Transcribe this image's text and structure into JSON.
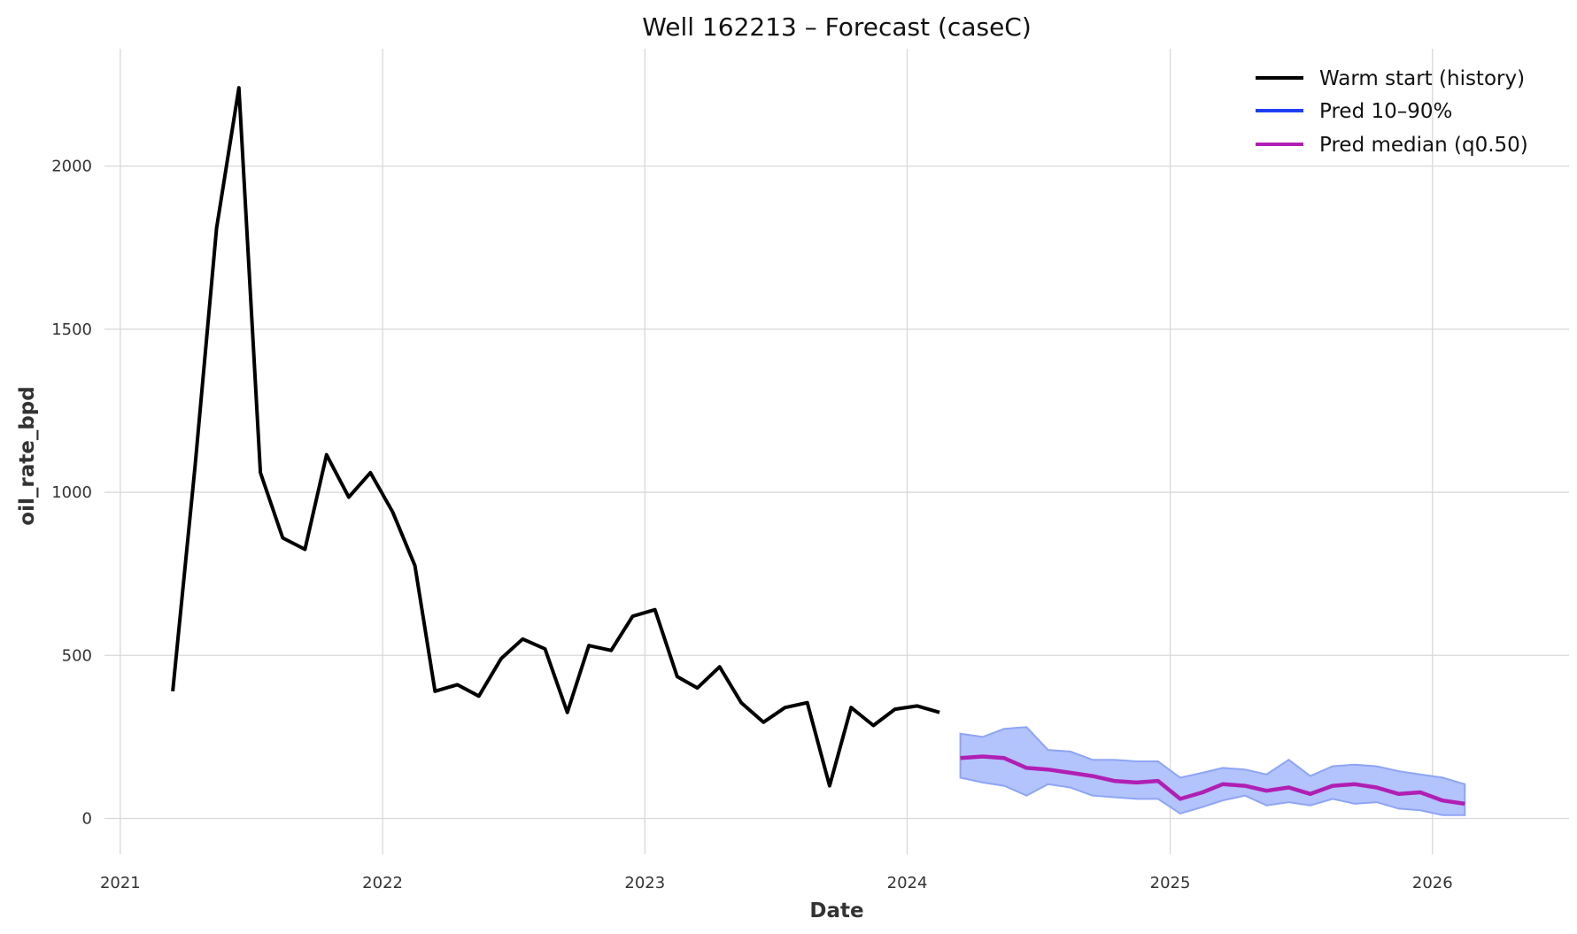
{
  "chart_data": {
    "type": "line",
    "title": "Well 162213 – Forecast (caseC)",
    "xlabel": "Date",
    "ylabel": "oil_rate_bpd",
    "xlim": [
      "2020-12-10",
      "2026-07-10"
    ],
    "ylim": [
      -110,
      2360
    ],
    "x_ticks": [
      "2021-01-01",
      "2022-01-01",
      "2023-01-01",
      "2024-01-01",
      "2025-01-01",
      "2026-01-01"
    ],
    "x_tick_labels": [
      "2021",
      "2022",
      "2023",
      "2024",
      "2025",
      "2026"
    ],
    "y_ticks": [
      0,
      500,
      1000,
      1500,
      2000
    ],
    "y_tick_labels": [
      "0",
      "500",
      "1000",
      "1500",
      "2000"
    ],
    "grid": true,
    "legend_position": "top-right",
    "colors": {
      "history": "#000000",
      "band_fill": "#b3c3fb",
      "band_edge": "#8ea5f5",
      "band_legend": "#1f3ff5",
      "median": "#b01fb4"
    },
    "legend": [
      "Warm start (history)",
      "Pred 10–90%",
      "Pred median (q0.50)"
    ],
    "history": {
      "name": "Warm start (history)",
      "x": [
        "2021-03",
        "2021-04",
        "2021-05",
        "2021-06",
        "2021-07",
        "2021-08",
        "2021-09",
        "2021-10",
        "2021-11",
        "2021-12",
        "2022-01",
        "2022-02",
        "2022-03",
        "2022-04",
        "2022-05",
        "2022-06",
        "2022-07",
        "2022-08",
        "2022-09",
        "2022-10",
        "2022-11",
        "2022-12",
        "2023-01",
        "2023-02",
        "2023-03",
        "2023-04",
        "2023-05",
        "2023-06",
        "2023-07",
        "2023-08",
        "2023-09",
        "2023-10",
        "2023-11",
        "2023-12",
        "2024-01",
        "2024-02"
      ],
      "values": [
        390,
        1080,
        1810,
        2240,
        1060,
        860,
        825,
        1115,
        985,
        1060,
        940,
        775,
        390,
        410,
        375,
        490,
        550,
        520,
        325,
        530,
        515,
        620,
        640,
        435,
        400,
        465,
        355,
        295,
        340,
        355,
        100,
        340,
        285,
        335,
        345,
        325
      ]
    },
    "band": {
      "name": "Pred 10–90%",
      "x": [
        "2024-03",
        "2024-04",
        "2024-05",
        "2024-06",
        "2024-07",
        "2024-08",
        "2024-09",
        "2024-10",
        "2024-11",
        "2024-12",
        "2025-01",
        "2025-02",
        "2025-03",
        "2025-04",
        "2025-05",
        "2025-06",
        "2025-07",
        "2025-08",
        "2025-09",
        "2025-10",
        "2025-11",
        "2025-12",
        "2026-01",
        "2026-02"
      ],
      "lower": [
        125,
        110,
        100,
        70,
        105,
        95,
        70,
        65,
        60,
        60,
        15,
        35,
        55,
        70,
        40,
        50,
        40,
        60,
        45,
        50,
        30,
        25,
        10,
        10
      ],
      "upper": [
        260,
        250,
        275,
        280,
        210,
        205,
        180,
        180,
        175,
        175,
        125,
        140,
        155,
        150,
        135,
        180,
        130,
        160,
        165,
        160,
        145,
        135,
        125,
        105
      ]
    },
    "median": {
      "name": "Pred median (q0.50)",
      "x": [
        "2024-03",
        "2024-04",
        "2024-05",
        "2024-06",
        "2024-07",
        "2024-08",
        "2024-09",
        "2024-10",
        "2024-11",
        "2024-12",
        "2025-01",
        "2025-02",
        "2025-03",
        "2025-04",
        "2025-05",
        "2025-06",
        "2025-07",
        "2025-08",
        "2025-09",
        "2025-10",
        "2025-11",
        "2025-12",
        "2026-01",
        "2026-02"
      ],
      "values": [
        185,
        190,
        185,
        155,
        150,
        140,
        130,
        115,
        110,
        115,
        60,
        80,
        105,
        100,
        85,
        95,
        75,
        100,
        105,
        95,
        75,
        80,
        55,
        45
      ]
    }
  }
}
